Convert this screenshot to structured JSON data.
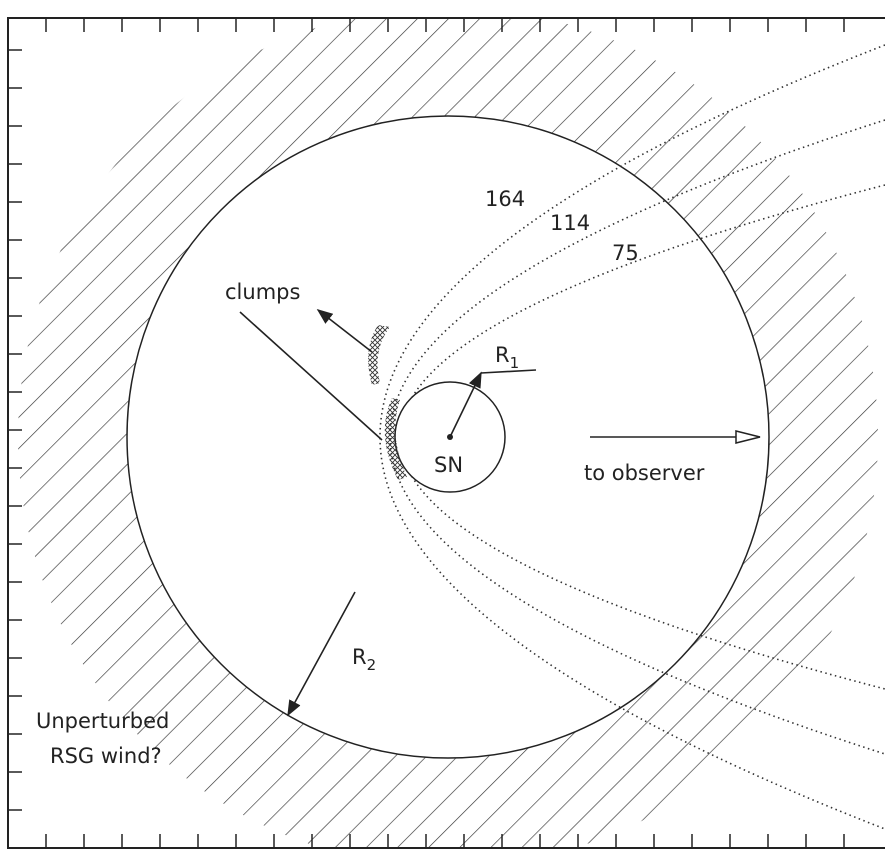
{
  "labels": [
    {
      "text": "164"
    },
    {
      "text": "114"
    },
    {
      "text": "75"
    },
    {
      "text": "clumps"
    },
    {
      "text": "R",
      "sub": "1"
    },
    {
      "text": "SN"
    },
    {
      "text": "to observer"
    },
    {
      "text": "R",
      "sub": "2"
    },
    {
      "text": "Unperturbed"
    },
    {
      "text": "RSG wind?"
    }
  ]
}
